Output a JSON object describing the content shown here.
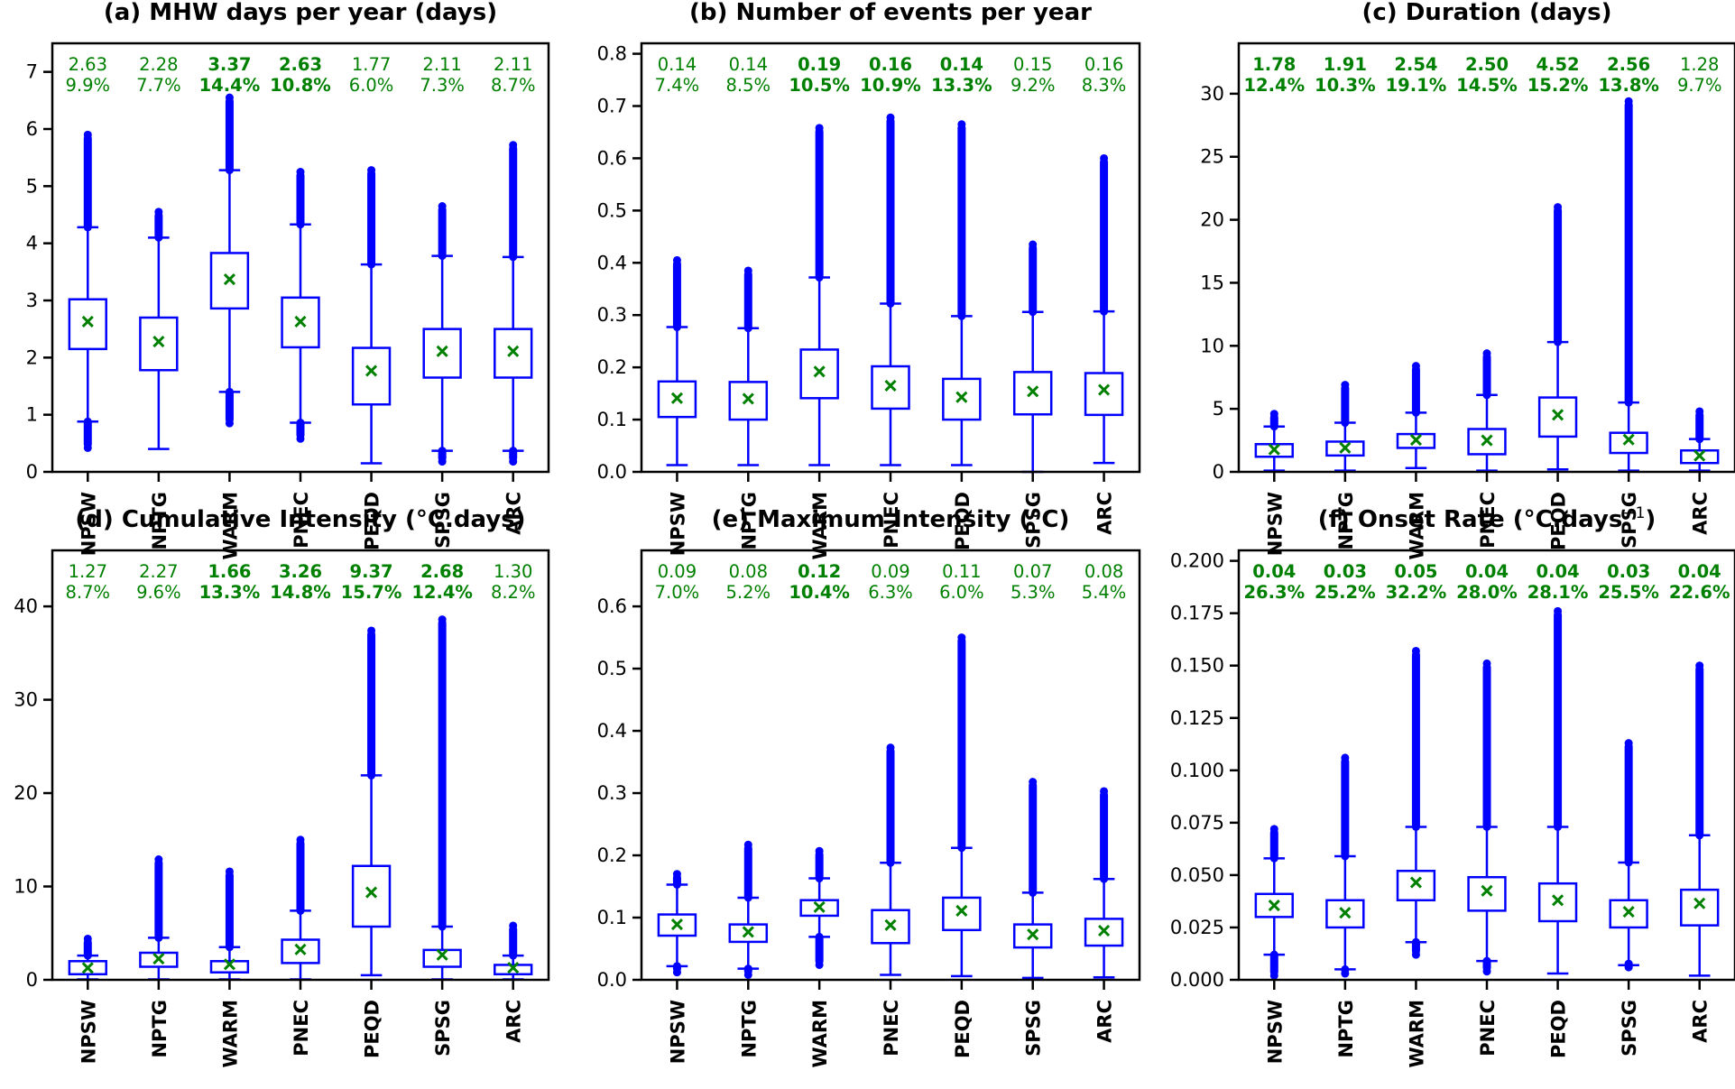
{
  "chart_data": {
    "type": "box",
    "categories": [
      "NPSW",
      "NPTG",
      "WARM",
      "PNEC",
      "PEQD",
      "SPSG",
      "ARC"
    ],
    "colors": {
      "box": "#0000ff",
      "mean_marker": "#008000",
      "annotation": "#008000",
      "axis": "#000000"
    },
    "panels": [
      {
        "id": "a",
        "title": "(a) MHW days per year (days)",
        "ylim": [
          0,
          7.5
        ],
        "yticks": [
          0,
          1,
          2,
          3,
          4,
          5,
          6,
          7
        ],
        "tick_format": 0,
        "annotations": [
          {
            "value": "2.63",
            "pct": "9.9%",
            "bold": false
          },
          {
            "value": "2.28",
            "pct": "7.7%",
            "bold": false
          },
          {
            "value": "3.37",
            "pct": "14.4%",
            "bold": true
          },
          {
            "value": "2.63",
            "pct": "10.8%",
            "bold": true
          },
          {
            "value": "1.77",
            "pct": "6.0%",
            "bold": false
          },
          {
            "value": "2.11",
            "pct": "7.3%",
            "bold": false
          },
          {
            "value": "2.11",
            "pct": "8.7%",
            "bold": false
          }
        ],
        "boxes": [
          {
            "wlo": 0.88,
            "q1": 2.15,
            "med": 2.57,
            "q3": 3.02,
            "whi": 4.28,
            "mean": 2.63,
            "out_hi": 5.9,
            "out_lo": 0.42
          },
          {
            "wlo": 0.4,
            "q1": 1.78,
            "med": 2.2,
            "q3": 2.7,
            "whi": 4.1,
            "mean": 2.28,
            "out_hi": 4.55,
            "out_lo": null
          },
          {
            "wlo": 1.4,
            "q1": 2.86,
            "med": 3.36,
            "q3": 3.83,
            "whi": 5.28,
            "mean": 3.37,
            "out_hi": 6.55,
            "out_lo": 0.85
          },
          {
            "wlo": 0.86,
            "q1": 2.18,
            "med": 2.63,
            "q3": 3.05,
            "whi": 4.33,
            "mean": 2.63,
            "out_hi": 5.25,
            "out_lo": 0.58
          },
          {
            "wlo": 0.15,
            "q1": 1.18,
            "med": 1.61,
            "q3": 2.17,
            "whi": 3.63,
            "mean": 1.77,
            "out_hi": 5.28,
            "out_lo": null
          },
          {
            "wlo": 0.37,
            "q1": 1.65,
            "med": 2.08,
            "q3": 2.5,
            "whi": 3.78,
            "mean": 2.11,
            "out_hi": 4.65,
            "out_lo": 0.18
          },
          {
            "wlo": 0.37,
            "q1": 1.65,
            "med": 2.08,
            "q3": 2.5,
            "whi": 3.76,
            "mean": 2.11,
            "out_hi": 5.72,
            "out_lo": 0.18
          }
        ]
      },
      {
        "id": "b",
        "title": "(b) Number of events per year",
        "ylim": [
          0,
          0.82
        ],
        "yticks": [
          0.0,
          0.1,
          0.2,
          0.3,
          0.4,
          0.5,
          0.6,
          0.7,
          0.8
        ],
        "tick_format": 1,
        "annotations": [
          {
            "value": "0.14",
            "pct": "7.4%",
            "bold": false
          },
          {
            "value": "0.14",
            "pct": "8.5%",
            "bold": false
          },
          {
            "value": "0.19",
            "pct": "10.5%",
            "bold": true
          },
          {
            "value": "0.16",
            "pct": "10.9%",
            "bold": true
          },
          {
            "value": "0.14",
            "pct": "13.3%",
            "bold": true
          },
          {
            "value": "0.15",
            "pct": "9.2%",
            "bold": false
          },
          {
            "value": "0.16",
            "pct": "8.3%",
            "bold": false
          }
        ],
        "boxes": [
          {
            "wlo": 0.013,
            "q1": 0.105,
            "med": 0.14,
            "q3": 0.173,
            "whi": 0.277,
            "mean": 0.141,
            "out_hi": 0.405,
            "out_lo": null
          },
          {
            "wlo": 0.013,
            "q1": 0.1,
            "med": 0.14,
            "q3": 0.172,
            "whi": 0.275,
            "mean": 0.14,
            "out_hi": 0.385,
            "out_lo": null
          },
          {
            "wlo": 0.013,
            "q1": 0.141,
            "med": 0.19,
            "q3": 0.234,
            "whi": 0.372,
            "mean": 0.192,
            "out_hi": 0.658,
            "out_lo": null
          },
          {
            "wlo": 0.013,
            "q1": 0.121,
            "med": 0.163,
            "q3": 0.202,
            "whi": 0.322,
            "mean": 0.165,
            "out_hi": 0.678,
            "out_lo": null
          },
          {
            "wlo": 0.013,
            "q1": 0.1,
            "med": 0.14,
            "q3": 0.178,
            "whi": 0.298,
            "mean": 0.143,
            "out_hi": 0.665,
            "out_lo": null
          },
          {
            "wlo": 0.0,
            "q1": 0.11,
            "med": 0.154,
            "q3": 0.191,
            "whi": 0.306,
            "mean": 0.154,
            "out_hi": 0.435,
            "out_lo": null
          },
          {
            "wlo": 0.017,
            "q1": 0.109,
            "med": 0.154,
            "q3": 0.189,
            "whi": 0.307,
            "mean": 0.157,
            "out_hi": 0.6,
            "out_lo": null
          }
        ]
      },
      {
        "id": "c",
        "title": "(c) Duration (days)",
        "ylim": [
          0,
          34
        ],
        "yticks": [
          0,
          5,
          10,
          15,
          20,
          25,
          30
        ],
        "tick_format": 0,
        "annotations": [
          {
            "value": "1.78",
            "pct": "12.4%",
            "bold": true
          },
          {
            "value": "1.91",
            "pct": "10.3%",
            "bold": true
          },
          {
            "value": "2.54",
            "pct": "19.1%",
            "bold": true
          },
          {
            "value": "2.50",
            "pct": "14.5%",
            "bold": true
          },
          {
            "value": "4.52",
            "pct": "15.2%",
            "bold": true
          },
          {
            "value": "2.56",
            "pct": "13.8%",
            "bold": true
          },
          {
            "value": "1.28",
            "pct": "9.7%",
            "bold": false
          }
        ],
        "boxes": [
          {
            "wlo": 0.1,
            "q1": 1.2,
            "med": 1.7,
            "q3": 2.2,
            "whi": 3.6,
            "mean": 1.78,
            "out_hi": 4.6,
            "out_lo": null
          },
          {
            "wlo": 0.1,
            "q1": 1.3,
            "med": 1.8,
            "q3": 2.4,
            "whi": 3.9,
            "mean": 1.91,
            "out_hi": 6.9,
            "out_lo": null
          },
          {
            "wlo": 0.3,
            "q1": 1.9,
            "med": 2.5,
            "q3": 3.0,
            "whi": 4.7,
            "mean": 2.54,
            "out_hi": 8.4,
            "out_lo": null
          },
          {
            "wlo": 0.1,
            "q1": 1.4,
            "med": 2.3,
            "q3": 3.4,
            "whi": 6.1,
            "mean": 2.5,
            "out_hi": 9.4,
            "out_lo": null
          },
          {
            "wlo": 0.2,
            "q1": 2.8,
            "med": 4.3,
            "q3": 5.9,
            "whi": 10.3,
            "mean": 4.52,
            "out_hi": 21.0,
            "out_lo": null
          },
          {
            "wlo": 0.1,
            "q1": 1.5,
            "med": 2.3,
            "q3": 3.1,
            "whi": 5.5,
            "mean": 2.56,
            "out_hi": 29.4,
            "out_lo": null
          },
          {
            "wlo": 0.1,
            "q1": 0.7,
            "med": 1.1,
            "q3": 1.7,
            "whi": 2.6,
            "mean": 1.28,
            "out_hi": 4.8,
            "out_lo": null
          }
        ]
      },
      {
        "id": "d",
        "title": "(d) Cumulative Intensity (°C.days)",
        "ylim": [
          0,
          46
        ],
        "yticks": [
          0,
          10,
          20,
          30,
          40
        ],
        "tick_format": 0,
        "annotations": [
          {
            "value": "1.27",
            "pct": "8.7%",
            "bold": false
          },
          {
            "value": "2.27",
            "pct": "9.6%",
            "bold": false
          },
          {
            "value": "1.66",
            "pct": "13.3%",
            "bold": true
          },
          {
            "value": "3.26",
            "pct": "14.8%",
            "bold": true
          },
          {
            "value": "9.37",
            "pct": "15.7%",
            "bold": true
          },
          {
            "value": "2.68",
            "pct": "12.4%",
            "bold": true
          },
          {
            "value": "1.30",
            "pct": "8.2%",
            "bold": false
          }
        ],
        "boxes": [
          {
            "wlo": 0.05,
            "q1": 0.6,
            "med": 1.0,
            "q3": 2.0,
            "whi": 2.6,
            "mean": 1.27,
            "out_hi": 4.4,
            "out_lo": null
          },
          {
            "wlo": 0.05,
            "q1": 1.4,
            "med": 2.0,
            "q3": 2.9,
            "whi": 4.5,
            "mean": 2.27,
            "out_hi": 12.9,
            "out_lo": null
          },
          {
            "wlo": 0.05,
            "q1": 0.8,
            "med": 1.3,
            "q3": 2.0,
            "whi": 3.5,
            "mean": 1.66,
            "out_hi": 11.6,
            "out_lo": null
          },
          {
            "wlo": 0.05,
            "q1": 1.8,
            "med": 2.8,
            "q3": 4.3,
            "whi": 7.4,
            "mean": 3.26,
            "out_hi": 15.0,
            "out_lo": null
          },
          {
            "wlo": 0.5,
            "q1": 5.7,
            "med": 8.3,
            "q3": 12.2,
            "whi": 21.9,
            "mean": 9.37,
            "out_hi": 37.4,
            "out_lo": null
          },
          {
            "wlo": 0.05,
            "q1": 1.4,
            "med": 2.3,
            "q3": 3.2,
            "whi": 5.7,
            "mean": 2.68,
            "out_hi": 38.6,
            "out_lo": null
          },
          {
            "wlo": 0.05,
            "q1": 0.6,
            "med": 1.0,
            "q3": 1.6,
            "whi": 2.6,
            "mean": 1.3,
            "out_hi": 5.8,
            "out_lo": null
          }
        ]
      },
      {
        "id": "e",
        "title": "(e) Maximum Intensity (°C)",
        "ylim": [
          0,
          0.69
        ],
        "yticks": [
          0.0,
          0.1,
          0.2,
          0.3,
          0.4,
          0.5,
          0.6
        ],
        "tick_format": 1,
        "annotations": [
          {
            "value": "0.09",
            "pct": "7.0%",
            "bold": false
          },
          {
            "value": "0.08",
            "pct": "5.2%",
            "bold": false
          },
          {
            "value": "0.12",
            "pct": "10.4%",
            "bold": true
          },
          {
            "value": "0.09",
            "pct": "6.3%",
            "bold": false
          },
          {
            "value": "0.11",
            "pct": "6.0%",
            "bold": false
          },
          {
            "value": "0.07",
            "pct": "5.3%",
            "bold": false
          },
          {
            "value": "0.08",
            "pct": "5.4%",
            "bold": false
          }
        ],
        "boxes": [
          {
            "wlo": 0.022,
            "q1": 0.071,
            "med": 0.088,
            "q3": 0.105,
            "whi": 0.153,
            "mean": 0.089,
            "out_hi": 0.17,
            "out_lo": 0.012
          },
          {
            "wlo": 0.018,
            "q1": 0.061,
            "med": 0.076,
            "q3": 0.089,
            "whi": 0.132,
            "mean": 0.077,
            "out_hi": 0.217,
            "out_lo": 0.008
          },
          {
            "wlo": 0.069,
            "q1": 0.103,
            "med": 0.115,
            "q3": 0.128,
            "whi": 0.163,
            "mean": 0.117,
            "out_hi": 0.207,
            "out_lo": 0.024
          },
          {
            "wlo": 0.008,
            "q1": 0.059,
            "med": 0.085,
            "q3": 0.112,
            "whi": 0.188,
            "mean": 0.088,
            "out_hi": 0.373,
            "out_lo": null
          },
          {
            "wlo": 0.006,
            "q1": 0.08,
            "med": 0.106,
            "q3": 0.132,
            "whi": 0.212,
            "mean": 0.111,
            "out_hi": 0.55,
            "out_lo": null
          },
          {
            "wlo": 0.003,
            "q1": 0.052,
            "med": 0.071,
            "q3": 0.089,
            "whi": 0.14,
            "mean": 0.073,
            "out_hi": 0.318,
            "out_lo": null
          },
          {
            "wlo": 0.004,
            "q1": 0.055,
            "med": 0.076,
            "q3": 0.098,
            "whi": 0.162,
            "mean": 0.079,
            "out_hi": 0.303,
            "out_lo": null
          }
        ]
      },
      {
        "id": "f",
        "title": "(f) Onset Rate (°C.days",
        "title_superscript": "−1",
        "title_suffix": ")",
        "ylim": [
          0,
          0.205
        ],
        "yticks": [
          0.0,
          0.025,
          0.05,
          0.075,
          0.1,
          0.125,
          0.15,
          0.175,
          0.2
        ],
        "tick_format": 3,
        "annotations": [
          {
            "value": "0.04",
            "pct": "26.3%",
            "bold": true
          },
          {
            "value": "0.03",
            "pct": "25.2%",
            "bold": true
          },
          {
            "value": "0.05",
            "pct": "32.2%",
            "bold": true
          },
          {
            "value": "0.04",
            "pct": "28.0%",
            "bold": true
          },
          {
            "value": "0.04",
            "pct": "28.1%",
            "bold": true
          },
          {
            "value": "0.03",
            "pct": "25.5%",
            "bold": true
          },
          {
            "value": "0.04",
            "pct": "22.6%",
            "bold": true
          }
        ],
        "boxes": [
          {
            "wlo": 0.012,
            "q1": 0.03,
            "med": 0.035,
            "q3": 0.041,
            "whi": 0.058,
            "mean": 0.0355,
            "out_hi": 0.072,
            "out_lo": 0.002
          },
          {
            "wlo": 0.005,
            "q1": 0.025,
            "med": 0.031,
            "q3": 0.038,
            "whi": 0.059,
            "mean": 0.032,
            "out_hi": 0.106,
            "out_lo": 0.003
          },
          {
            "wlo": 0.018,
            "q1": 0.038,
            "med": 0.045,
            "q3": 0.052,
            "whi": 0.073,
            "mean": 0.0465,
            "out_hi": 0.157,
            "out_lo": 0.012
          },
          {
            "wlo": 0.009,
            "q1": 0.033,
            "med": 0.04,
            "q3": 0.049,
            "whi": 0.073,
            "mean": 0.0425,
            "out_hi": 0.151,
            "out_lo": 0.004
          },
          {
            "wlo": 0.003,
            "q1": 0.028,
            "med": 0.037,
            "q3": 0.046,
            "whi": 0.073,
            "mean": 0.038,
            "out_hi": 0.176,
            "out_lo": null
          },
          {
            "wlo": 0.007,
            "q1": 0.025,
            "med": 0.031,
            "q3": 0.038,
            "whi": 0.056,
            "mean": 0.0325,
            "out_hi": 0.113,
            "out_lo": 0.006
          },
          {
            "wlo": 0.002,
            "q1": 0.026,
            "med": 0.034,
            "q3": 0.043,
            "whi": 0.069,
            "mean": 0.0365,
            "out_hi": 0.15,
            "out_lo": null
          }
        ]
      }
    ]
  }
}
